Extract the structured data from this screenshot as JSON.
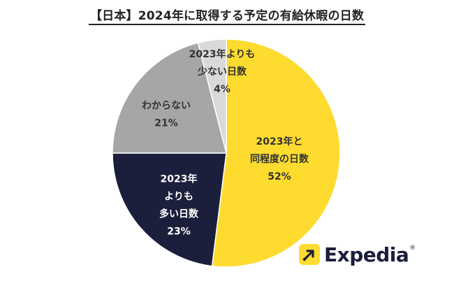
{
  "chart_data": {
    "type": "pie",
    "title": "【日本】2024年に取得する予定の有給休暇の日数",
    "start_angle_deg": 0,
    "direction": "clockwise",
    "slices": [
      {
        "label_lines": [
          "2023年と",
          "同程度の日数"
        ],
        "value": 52,
        "value_text": "52%",
        "color": "#FEDB2F",
        "text_color": "#333333"
      },
      {
        "label_lines": [
          "2023年",
          "よりも",
          "多い日数"
        ],
        "value": 23,
        "value_text": "23%",
        "color": "#1B1F3B",
        "text_color": "#ffffff"
      },
      {
        "label_lines": [
          "わからない"
        ],
        "value": 21,
        "value_text": "21%",
        "color": "#A6A6A6",
        "text_color": "#333333"
      },
      {
        "label_lines": [
          "2023年よりも",
          "少ない日数"
        ],
        "value": 4,
        "value_text": "4%",
        "color": "#D9D9D9",
        "text_color": "#333333"
      }
    ]
  },
  "brand": {
    "name": "Expedia",
    "mark": "®"
  }
}
